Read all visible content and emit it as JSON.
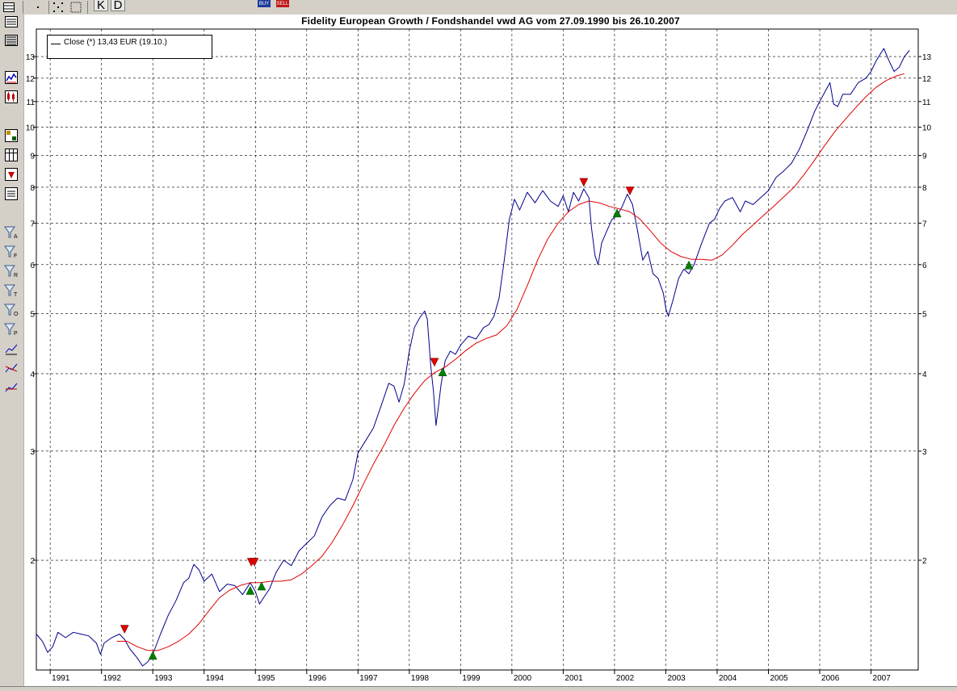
{
  "toolbar": {
    "k_label": "K",
    "d_label": "D",
    "buy_label": "BUY",
    "sell_label": "SELL"
  },
  "sidebar_icons": [
    "list-icon",
    "lines-icon",
    "line-chart-icon",
    "candlestick-icon",
    "grid-chart-icon",
    "table-icon",
    "down-arrow-icon",
    "document-icon",
    "filter-a-icon",
    "filter-f-icon",
    "filter-r-icon",
    "filter-t-icon",
    "filter-o-icon",
    "filter-p-icon",
    "trend-icon-1",
    "trend-icon-2",
    "trend-icon-3"
  ],
  "sidebar_labels": [
    "A",
    "F",
    "R",
    "T",
    "O",
    "P"
  ],
  "legend": {
    "text": "Close (*) 13,43 EUR (19.10.)"
  },
  "colors": {
    "price": "#00008b",
    "average": "#e00000",
    "buy_marker": "#008000",
    "sell_marker": "#e00000",
    "grid": "#000000"
  },
  "chart_data": {
    "type": "line",
    "title": "Fidelity European Growth / Fondshandel vwd AG vom 27.09.1990 bis 26.10.2007",
    "y_scale": "log",
    "ylim": [
      1.33,
      14.4
    ],
    "y_ticks": [
      {
        "v": 2,
        "l": "2"
      },
      {
        "v": 3,
        "l": "3"
      },
      {
        "v": 4,
        "l": "4"
      },
      {
        "v": 5,
        "l": "5"
      },
      {
        "v": 6,
        "l": "6"
      },
      {
        "v": 7,
        "l": "7"
      },
      {
        "v": 8,
        "l": "8"
      },
      {
        "v": 9,
        "l": "9"
      },
      {
        "v": 10,
        "l": "10"
      },
      {
        "v": 11,
        "l": "11"
      },
      {
        "v": 12,
        "l": "12"
      },
      {
        "v": 13,
        "l": "13"
      }
    ],
    "xlim": [
      1990.73,
      2007.92
    ],
    "x_ticks": [
      {
        "v": 1991,
        "l": "1991"
      },
      {
        "v": 1992,
        "l": "1992"
      },
      {
        "v": 1993,
        "l": "1993"
      },
      {
        "v": 1994,
        "l": "1994"
      },
      {
        "v": 1995,
        "l": "1995"
      },
      {
        "v": 1996,
        "l": "1996"
      },
      {
        "v": 1997,
        "l": "1997"
      },
      {
        "v": 1998,
        "l": "1998"
      },
      {
        "v": 1999,
        "l": "1999"
      },
      {
        "v": 2000,
        "l": "2000"
      },
      {
        "v": 2001,
        "l": "2001"
      },
      {
        "v": 2002,
        "l": "2002"
      },
      {
        "v": 2003,
        "l": "2003"
      },
      {
        "v": 2004,
        "l": "2004"
      },
      {
        "v": 2005,
        "l": "2005"
      },
      {
        "v": 2006,
        "l": "2006"
      },
      {
        "v": 2007,
        "l": "2007"
      }
    ],
    "grid": true,
    "legend_position": "top-left",
    "series": [
      {
        "name": "Close (*) 13,43 EUR (19.10.)",
        "points": [
          [
            1990.73,
            1.52
          ],
          [
            1990.85,
            1.48
          ],
          [
            1990.95,
            1.42
          ],
          [
            1991.05,
            1.45
          ],
          [
            1991.15,
            1.53
          ],
          [
            1991.3,
            1.5
          ],
          [
            1991.45,
            1.53
          ],
          [
            1991.6,
            1.52
          ],
          [
            1991.75,
            1.51
          ],
          [
            1991.9,
            1.47
          ],
          [
            1991.98,
            1.41
          ],
          [
            1992.05,
            1.47
          ],
          [
            1992.2,
            1.5
          ],
          [
            1992.35,
            1.52
          ],
          [
            1992.45,
            1.49
          ],
          [
            1992.55,
            1.44
          ],
          [
            1992.7,
            1.39
          ],
          [
            1992.8,
            1.35
          ],
          [
            1992.9,
            1.37
          ],
          [
            1993.0,
            1.41
          ],
          [
            1993.15,
            1.52
          ],
          [
            1993.3,
            1.63
          ],
          [
            1993.45,
            1.72
          ],
          [
            1993.6,
            1.84
          ],
          [
            1993.7,
            1.87
          ],
          [
            1993.8,
            1.97
          ],
          [
            1993.9,
            1.93
          ],
          [
            1994.0,
            1.85
          ],
          [
            1994.15,
            1.9
          ],
          [
            1994.3,
            1.78
          ],
          [
            1994.45,
            1.83
          ],
          [
            1994.6,
            1.82
          ],
          [
            1994.75,
            1.76
          ],
          [
            1994.9,
            1.84
          ],
          [
            1995.0,
            1.78
          ],
          [
            1995.08,
            1.7
          ],
          [
            1995.18,
            1.75
          ],
          [
            1995.28,
            1.8
          ],
          [
            1995.4,
            1.91
          ],
          [
            1995.55,
            2.0
          ],
          [
            1995.7,
            1.96
          ],
          [
            1995.85,
            2.07
          ],
          [
            1996.0,
            2.13
          ],
          [
            1996.15,
            2.19
          ],
          [
            1996.3,
            2.35
          ],
          [
            1996.45,
            2.45
          ],
          [
            1996.6,
            2.52
          ],
          [
            1996.75,
            2.5
          ],
          [
            1996.9,
            2.7
          ],
          [
            1997.0,
            2.98
          ],
          [
            1997.15,
            3.12
          ],
          [
            1997.3,
            3.27
          ],
          [
            1997.45,
            3.55
          ],
          [
            1997.6,
            3.86
          ],
          [
            1997.7,
            3.82
          ],
          [
            1997.8,
            3.6
          ],
          [
            1997.9,
            3.85
          ],
          [
            1998.0,
            4.35
          ],
          [
            1998.1,
            4.75
          ],
          [
            1998.2,
            4.92
          ],
          [
            1998.3,
            5.05
          ],
          [
            1998.35,
            4.9
          ],
          [
            1998.42,
            4.1
          ],
          [
            1998.47,
            3.75
          ],
          [
            1998.52,
            3.3
          ],
          [
            1998.57,
            3.55
          ],
          [
            1998.62,
            3.85
          ],
          [
            1998.7,
            4.2
          ],
          [
            1998.8,
            4.35
          ],
          [
            1998.9,
            4.3
          ],
          [
            1999.0,
            4.45
          ],
          [
            1999.15,
            4.6
          ],
          [
            1999.3,
            4.55
          ],
          [
            1999.45,
            4.75
          ],
          [
            1999.55,
            4.8
          ],
          [
            1999.65,
            4.95
          ],
          [
            1999.75,
            5.3
          ],
          [
            1999.85,
            6.1
          ],
          [
            1999.95,
            7.1
          ],
          [
            2000.05,
            7.65
          ],
          [
            2000.15,
            7.35
          ],
          [
            2000.3,
            7.85
          ],
          [
            2000.45,
            7.55
          ],
          [
            2000.6,
            7.9
          ],
          [
            2000.75,
            7.6
          ],
          [
            2000.9,
            7.45
          ],
          [
            2001.0,
            7.75
          ],
          [
            2001.1,
            7.3
          ],
          [
            2001.2,
            7.85
          ],
          [
            2001.3,
            7.6
          ],
          [
            2001.4,
            7.95
          ],
          [
            2001.5,
            7.7
          ],
          [
            2001.55,
            6.9
          ],
          [
            2001.62,
            6.2
          ],
          [
            2001.68,
            6.0
          ],
          [
            2001.75,
            6.5
          ],
          [
            2001.85,
            6.8
          ],
          [
            2001.95,
            7.1
          ],
          [
            2002.05,
            7.2
          ],
          [
            2002.15,
            7.45
          ],
          [
            2002.25,
            7.8
          ],
          [
            2002.35,
            7.5
          ],
          [
            2002.45,
            6.8
          ],
          [
            2002.55,
            6.1
          ],
          [
            2002.65,
            6.3
          ],
          [
            2002.75,
            5.8
          ],
          [
            2002.85,
            5.7
          ],
          [
            2002.95,
            5.4
          ],
          [
            2003.0,
            5.1
          ],
          [
            2003.05,
            4.95
          ],
          [
            2003.15,
            5.3
          ],
          [
            2003.25,
            5.7
          ],
          [
            2003.35,
            5.9
          ],
          [
            2003.45,
            5.8
          ],
          [
            2003.55,
            6.0
          ],
          [
            2003.7,
            6.5
          ],
          [
            2003.85,
            7.0
          ],
          [
            2003.95,
            7.1
          ],
          [
            2004.05,
            7.4
          ],
          [
            2004.15,
            7.6
          ],
          [
            2004.3,
            7.7
          ],
          [
            2004.45,
            7.3
          ],
          [
            2004.55,
            7.6
          ],
          [
            2004.7,
            7.5
          ],
          [
            2004.85,
            7.7
          ],
          [
            2005.0,
            7.9
          ],
          [
            2005.15,
            8.3
          ],
          [
            2005.3,
            8.5
          ],
          [
            2005.45,
            8.75
          ],
          [
            2005.6,
            9.2
          ],
          [
            2005.75,
            9.85
          ],
          [
            2005.9,
            10.6
          ],
          [
            2006.0,
            11.0
          ],
          [
            2006.1,
            11.4
          ],
          [
            2006.2,
            11.8
          ],
          [
            2006.27,
            10.9
          ],
          [
            2006.35,
            10.8
          ],
          [
            2006.45,
            11.3
          ],
          [
            2006.6,
            11.3
          ],
          [
            2006.75,
            11.8
          ],
          [
            2006.9,
            12.0
          ],
          [
            2007.0,
            12.3
          ],
          [
            2007.1,
            12.8
          ],
          [
            2007.25,
            13.4
          ],
          [
            2007.35,
            12.8
          ],
          [
            2007.45,
            12.3
          ],
          [
            2007.55,
            12.5
          ],
          [
            2007.65,
            13.0
          ],
          [
            2007.75,
            13.3
          ]
        ]
      },
      {
        "name": "",
        "points": [
          [
            1992.3,
            1.48
          ],
          [
            1992.5,
            1.48
          ],
          [
            1992.7,
            1.45
          ],
          [
            1992.9,
            1.43
          ],
          [
            1993.1,
            1.43
          ],
          [
            1993.3,
            1.45
          ],
          [
            1993.5,
            1.48
          ],
          [
            1993.7,
            1.52
          ],
          [
            1993.9,
            1.58
          ],
          [
            1994.1,
            1.66
          ],
          [
            1994.3,
            1.74
          ],
          [
            1994.5,
            1.79
          ],
          [
            1994.7,
            1.82
          ],
          [
            1994.9,
            1.84
          ],
          [
            1995.1,
            1.84
          ],
          [
            1995.3,
            1.85
          ],
          [
            1995.5,
            1.85
          ],
          [
            1995.7,
            1.86
          ],
          [
            1995.9,
            1.9
          ],
          [
            1996.1,
            1.96
          ],
          [
            1996.3,
            2.03
          ],
          [
            1996.5,
            2.14
          ],
          [
            1996.7,
            2.28
          ],
          [
            1996.9,
            2.45
          ],
          [
            1997.1,
            2.65
          ],
          [
            1997.3,
            2.86
          ],
          [
            1997.5,
            3.06
          ],
          [
            1997.7,
            3.3
          ],
          [
            1997.9,
            3.52
          ],
          [
            1998.1,
            3.72
          ],
          [
            1998.3,
            3.9
          ],
          [
            1998.5,
            4.02
          ],
          [
            1998.7,
            4.1
          ],
          [
            1998.9,
            4.22
          ],
          [
            1999.1,
            4.36
          ],
          [
            1999.3,
            4.48
          ],
          [
            1999.5,
            4.56
          ],
          [
            1999.7,
            4.62
          ],
          [
            1999.9,
            4.78
          ],
          [
            2000.1,
            5.08
          ],
          [
            2000.3,
            5.55
          ],
          [
            2000.5,
            6.1
          ],
          [
            2000.7,
            6.6
          ],
          [
            2000.9,
            7.0
          ],
          [
            2001.1,
            7.3
          ],
          [
            2001.3,
            7.5
          ],
          [
            2001.5,
            7.6
          ],
          [
            2001.7,
            7.55
          ],
          [
            2001.9,
            7.45
          ],
          [
            2002.1,
            7.38
          ],
          [
            2002.3,
            7.3
          ],
          [
            2002.5,
            7.1
          ],
          [
            2002.7,
            6.8
          ],
          [
            2002.9,
            6.5
          ],
          [
            2003.1,
            6.3
          ],
          [
            2003.3,
            6.18
          ],
          [
            2003.5,
            6.12
          ],
          [
            2003.7,
            6.12
          ],
          [
            2003.9,
            6.1
          ],
          [
            2004.1,
            6.22
          ],
          [
            2004.3,
            6.45
          ],
          [
            2004.5,
            6.72
          ],
          [
            2004.7,
            6.95
          ],
          [
            2004.9,
            7.2
          ],
          [
            2005.1,
            7.45
          ],
          [
            2005.3,
            7.72
          ],
          [
            2005.5,
            8.0
          ],
          [
            2005.7,
            8.4
          ],
          [
            2005.9,
            8.85
          ],
          [
            2006.1,
            9.35
          ],
          [
            2006.3,
            9.85
          ],
          [
            2006.5,
            10.3
          ],
          [
            2006.7,
            10.75
          ],
          [
            2006.9,
            11.2
          ],
          [
            2007.1,
            11.6
          ],
          [
            2007.3,
            11.9
          ],
          [
            2007.5,
            12.1
          ],
          [
            2007.65,
            12.2
          ]
        ]
      }
    ],
    "buy_signals": [
      [
        1993.0,
        1.43
      ],
      [
        1994.9,
        1.82
      ],
      [
        1995.12,
        1.85
      ],
      [
        1998.65,
        4.1
      ],
      [
        2002.05,
        7.4
      ],
      [
        2003.45,
        6.1
      ]
    ],
    "sell_signals": [
      [
        1992.45,
        1.52
      ],
      [
        1994.92,
        1.95
      ],
      [
        1994.98,
        1.95
      ],
      [
        1998.49,
        4.1
      ],
      [
        2001.4,
        8.0
      ],
      [
        2002.3,
        7.75
      ]
    ]
  }
}
